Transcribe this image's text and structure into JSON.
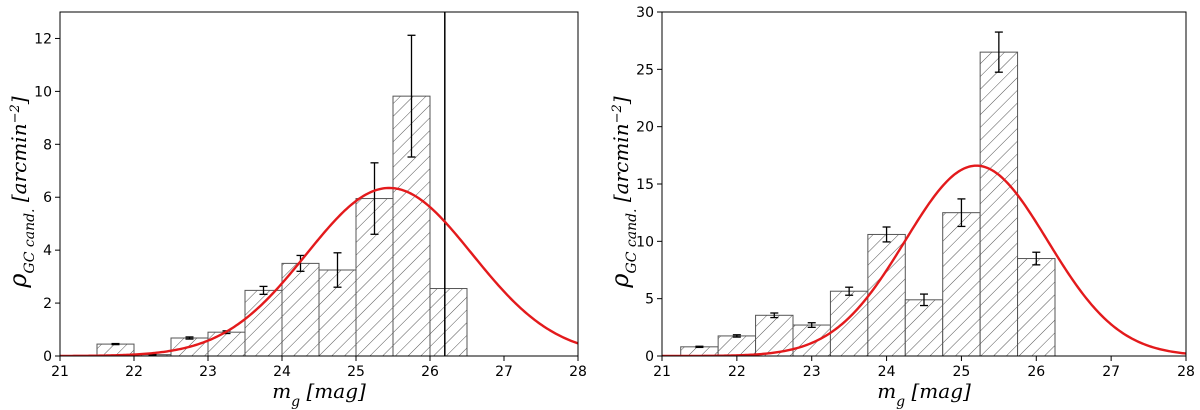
{
  "chart_data": [
    {
      "type": "bar",
      "xlabel": "m_g [mag]",
      "ylabel": "ρ_GC cand. [arcmin^-2]",
      "xlim": [
        21,
        28
      ],
      "ylim": [
        0,
        13
      ],
      "xticks": [
        21,
        22,
        23,
        24,
        25,
        26,
        27,
        28
      ],
      "yticks": [
        0,
        2,
        4,
        6,
        8,
        10,
        12
      ],
      "grid": false,
      "bin_width": 0.5,
      "bin_left_edges": [
        21.5,
        22.0,
        22.5,
        23.0,
        23.5,
        24.0,
        24.5,
        25.0,
        25.5,
        26.0
      ],
      "values": [
        0.45,
        0.05,
        0.68,
        0.9,
        2.48,
        3.5,
        3.25,
        5.95,
        9.82,
        2.55
      ],
      "errors": [
        0.02,
        0.01,
        0.04,
        0.05,
        0.15,
        0.3,
        0.65,
        1.35,
        2.3,
        0.0
      ],
      "vline": 26.2,
      "gaussian": {
        "amplitude": 6.35,
        "mean": 25.45,
        "sigma": 1.12
      },
      "colors": {
        "curve": "#e31a1c",
        "bar_edge": "#555555",
        "hatch": "#555555",
        "errorbar": "#000000",
        "vline": "#000000"
      }
    },
    {
      "type": "bar",
      "xlabel": "m_g [mag]",
      "ylabel": "ρ_GC cand. [arcmin^-2]",
      "xlim": [
        21,
        28
      ],
      "ylim": [
        0,
        30
      ],
      "xticks": [
        21,
        22,
        23,
        24,
        25,
        26,
        27,
        28
      ],
      "yticks": [
        0,
        5,
        10,
        15,
        20,
        25,
        30
      ],
      "grid": false,
      "bin_width": 0.5,
      "bin_left_edges": [
        21.25,
        21.75,
        22.25,
        22.75,
        23.25,
        23.75,
        24.25,
        24.75,
        25.25,
        25.75
      ],
      "values": [
        0.8,
        1.75,
        3.55,
        2.7,
        5.65,
        10.6,
        4.9,
        12.5,
        26.5,
        8.5
      ],
      "errors": [
        0.05,
        0.1,
        0.2,
        0.2,
        0.35,
        0.65,
        0.5,
        1.2,
        1.75,
        0.55
      ],
      "gaussian": {
        "amplitude": 16.6,
        "mean": 25.2,
        "sigma": 0.95
      },
      "colors": {
        "curve": "#e31a1c",
        "bar_edge": "#555555",
        "hatch": "#555555",
        "errorbar": "#000000"
      }
    }
  ]
}
